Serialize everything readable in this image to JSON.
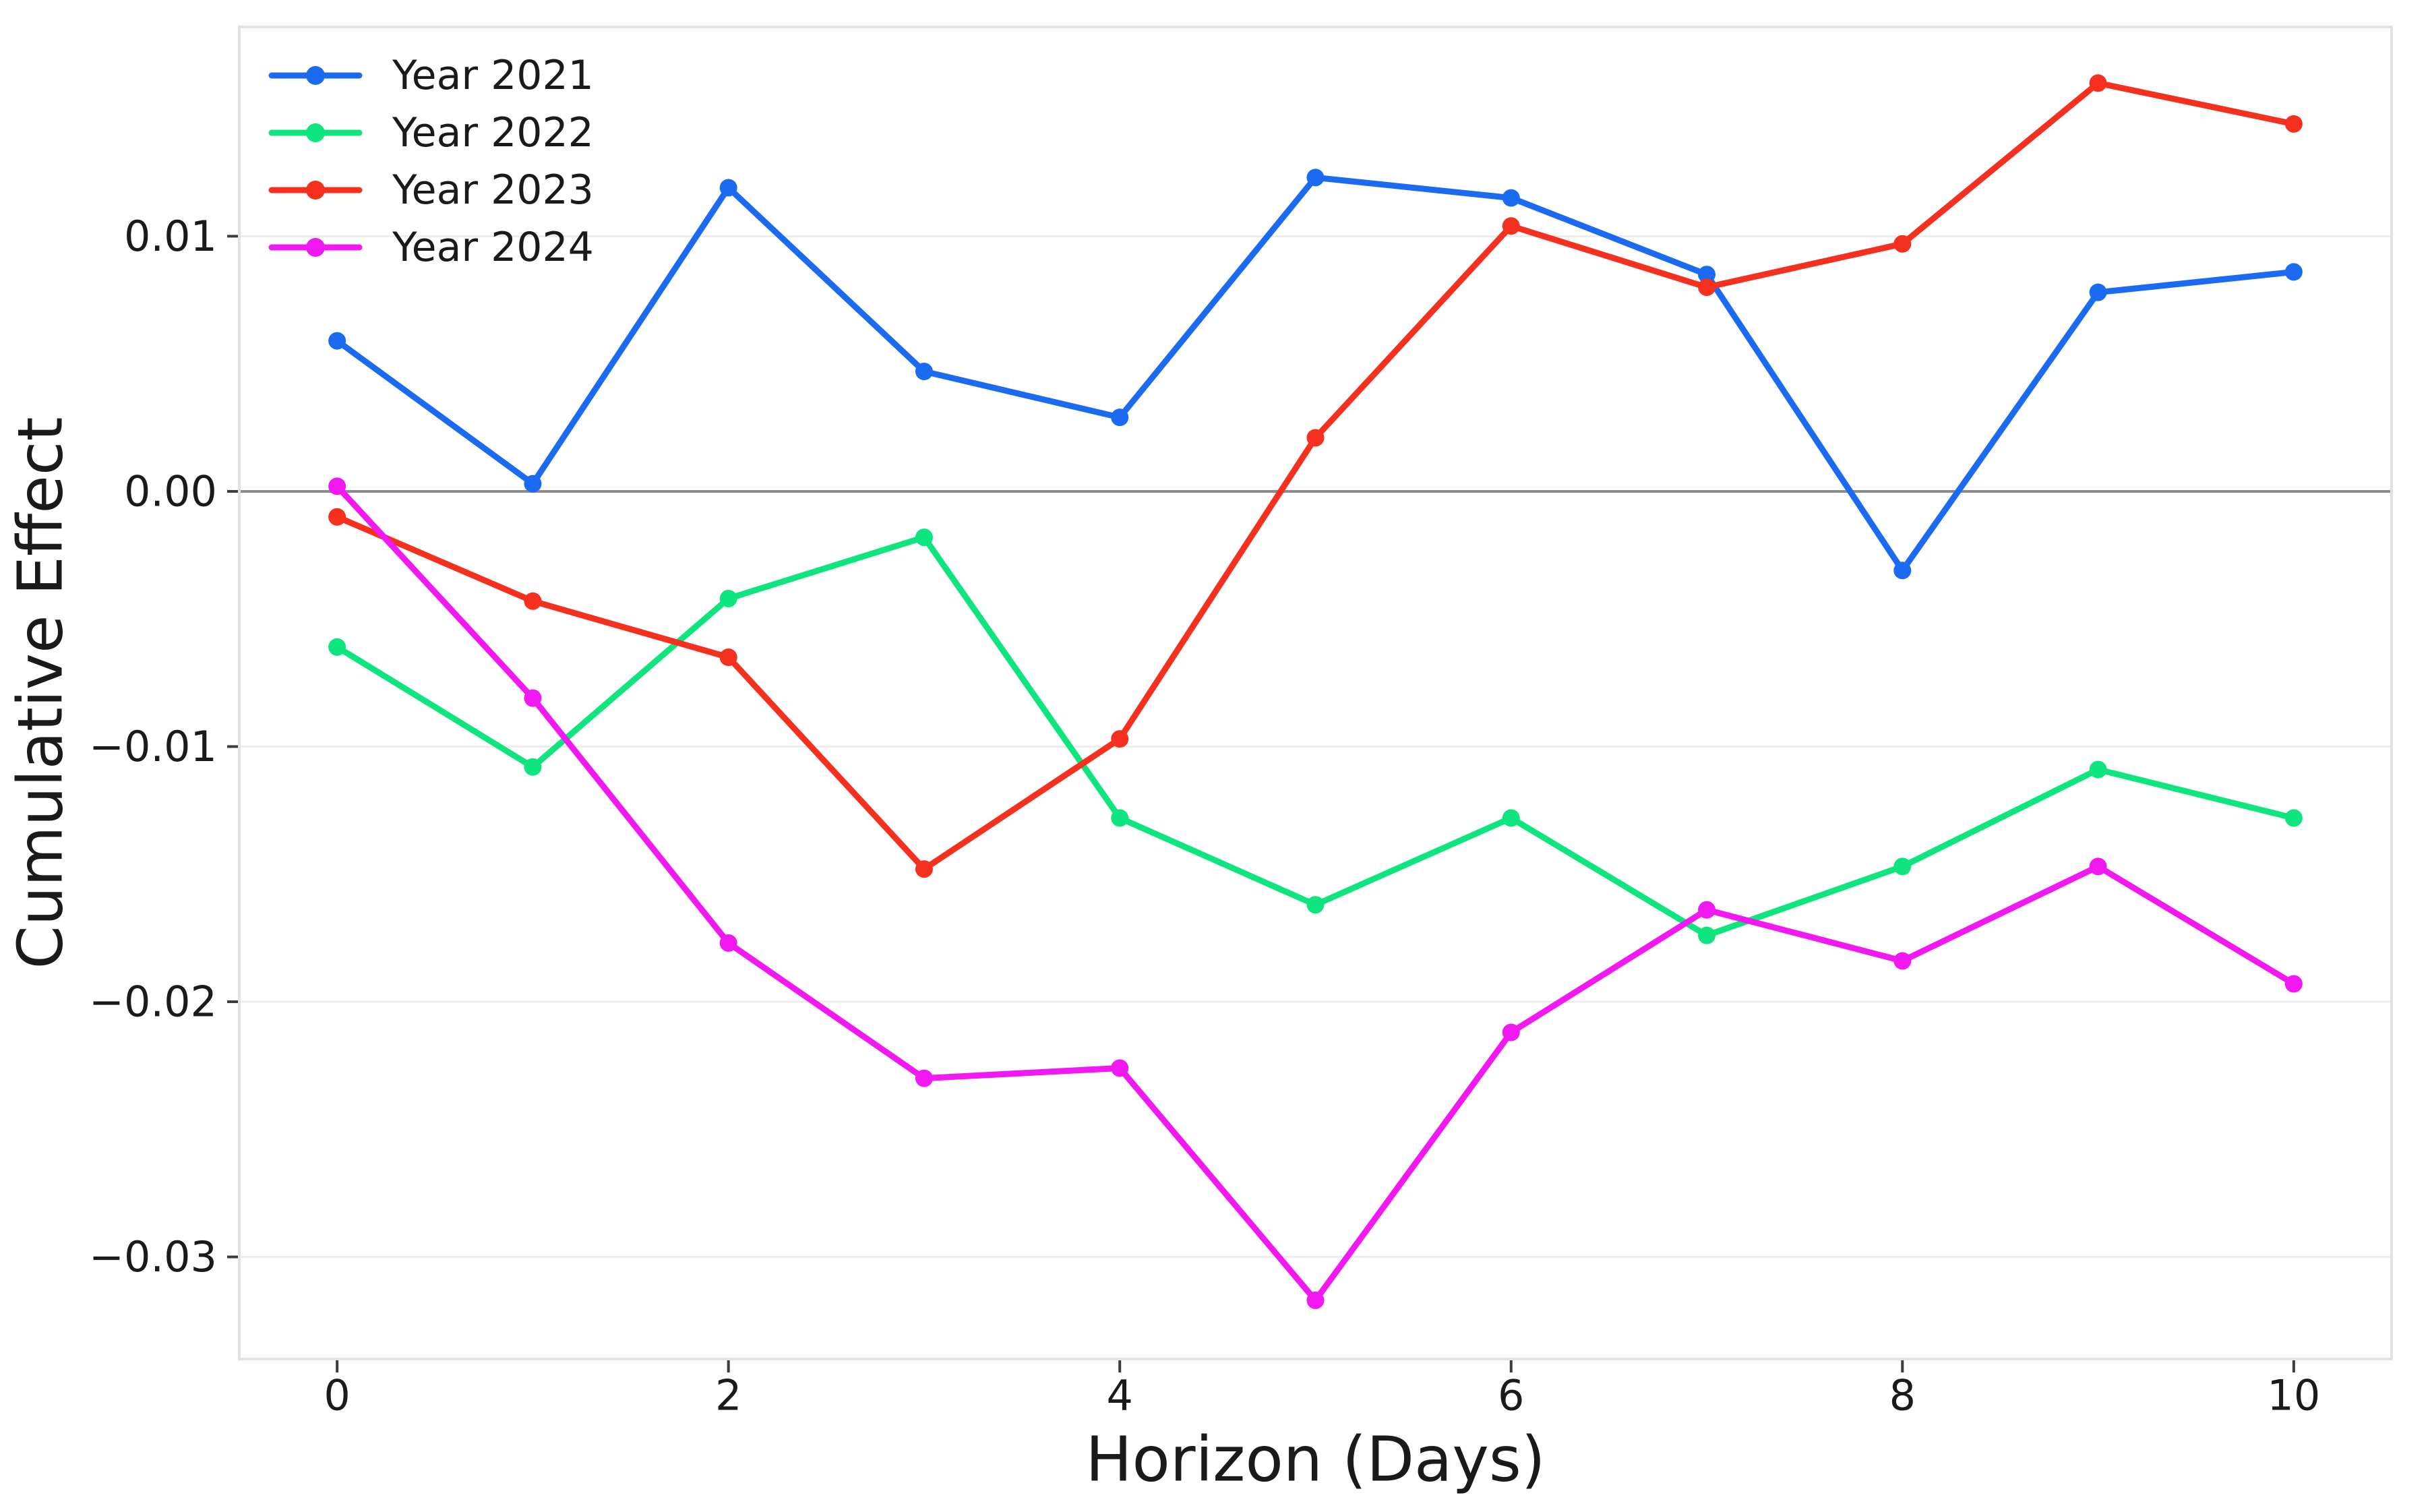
{
  "chart_data": {
    "type": "line",
    "title": "",
    "xlabel": "Horizon (Days)",
    "ylabel": "Cumulative Effect",
    "x": [
      0,
      1,
      2,
      3,
      4,
      5,
      6,
      7,
      8,
      9,
      10
    ],
    "xlim": [
      -0.5,
      10.5
    ],
    "ylim": [
      -0.034,
      0.0182
    ],
    "grid": true,
    "zero_line": true,
    "legend_position": "upper-left",
    "xticks": [
      {
        "v": 0,
        "label": "0"
      },
      {
        "v": 2,
        "label": "2"
      },
      {
        "v": 4,
        "label": "4"
      },
      {
        "v": 6,
        "label": "6"
      },
      {
        "v": 8,
        "label": "8"
      },
      {
        "v": 10,
        "label": "10"
      }
    ],
    "yticks": [
      {
        "v": 0.01,
        "label": "0.01"
      },
      {
        "v": 0.0,
        "label": "0.00"
      },
      {
        "v": -0.01,
        "label": "−0.01"
      },
      {
        "v": -0.02,
        "label": "−0.02"
      },
      {
        "v": -0.03,
        "label": "−0.03"
      }
    ],
    "series": [
      {
        "name": "Year 2021",
        "color": "#1b6bf2",
        "values": [
          0.0059,
          0.0003,
          0.0119,
          0.0047,
          0.0029,
          0.0123,
          0.0115,
          0.0085,
          -0.0031,
          0.0078,
          0.0086
        ]
      },
      {
        "name": "Year 2022",
        "color": "#0ee57e",
        "values": [
          -0.0061,
          -0.0108,
          -0.0042,
          -0.0018,
          -0.0128,
          -0.0162,
          -0.0128,
          -0.0174,
          -0.0147,
          -0.0109,
          -0.0128
        ]
      },
      {
        "name": "Year 2023",
        "color": "#f5301e",
        "values": [
          -0.001,
          -0.0043,
          -0.0065,
          -0.0148,
          -0.0097,
          0.0021,
          0.0104,
          0.008,
          0.0097,
          0.016,
          0.0144
        ]
      },
      {
        "name": "Year 2024",
        "color": "#f118f1",
        "values": [
          0.0002,
          -0.0081,
          -0.0177,
          -0.023,
          -0.0226,
          -0.0317,
          -0.0212,
          -0.0164,
          -0.0184,
          -0.0147,
          -0.0193
        ]
      }
    ]
  },
  "colors": {
    "background": "#ffffff",
    "zero_line": "#8c8c8c",
    "grid": "#ededed",
    "spine": "#e2e2e2",
    "tick": "#3c3c3c",
    "text": "#1a1a1a"
  }
}
